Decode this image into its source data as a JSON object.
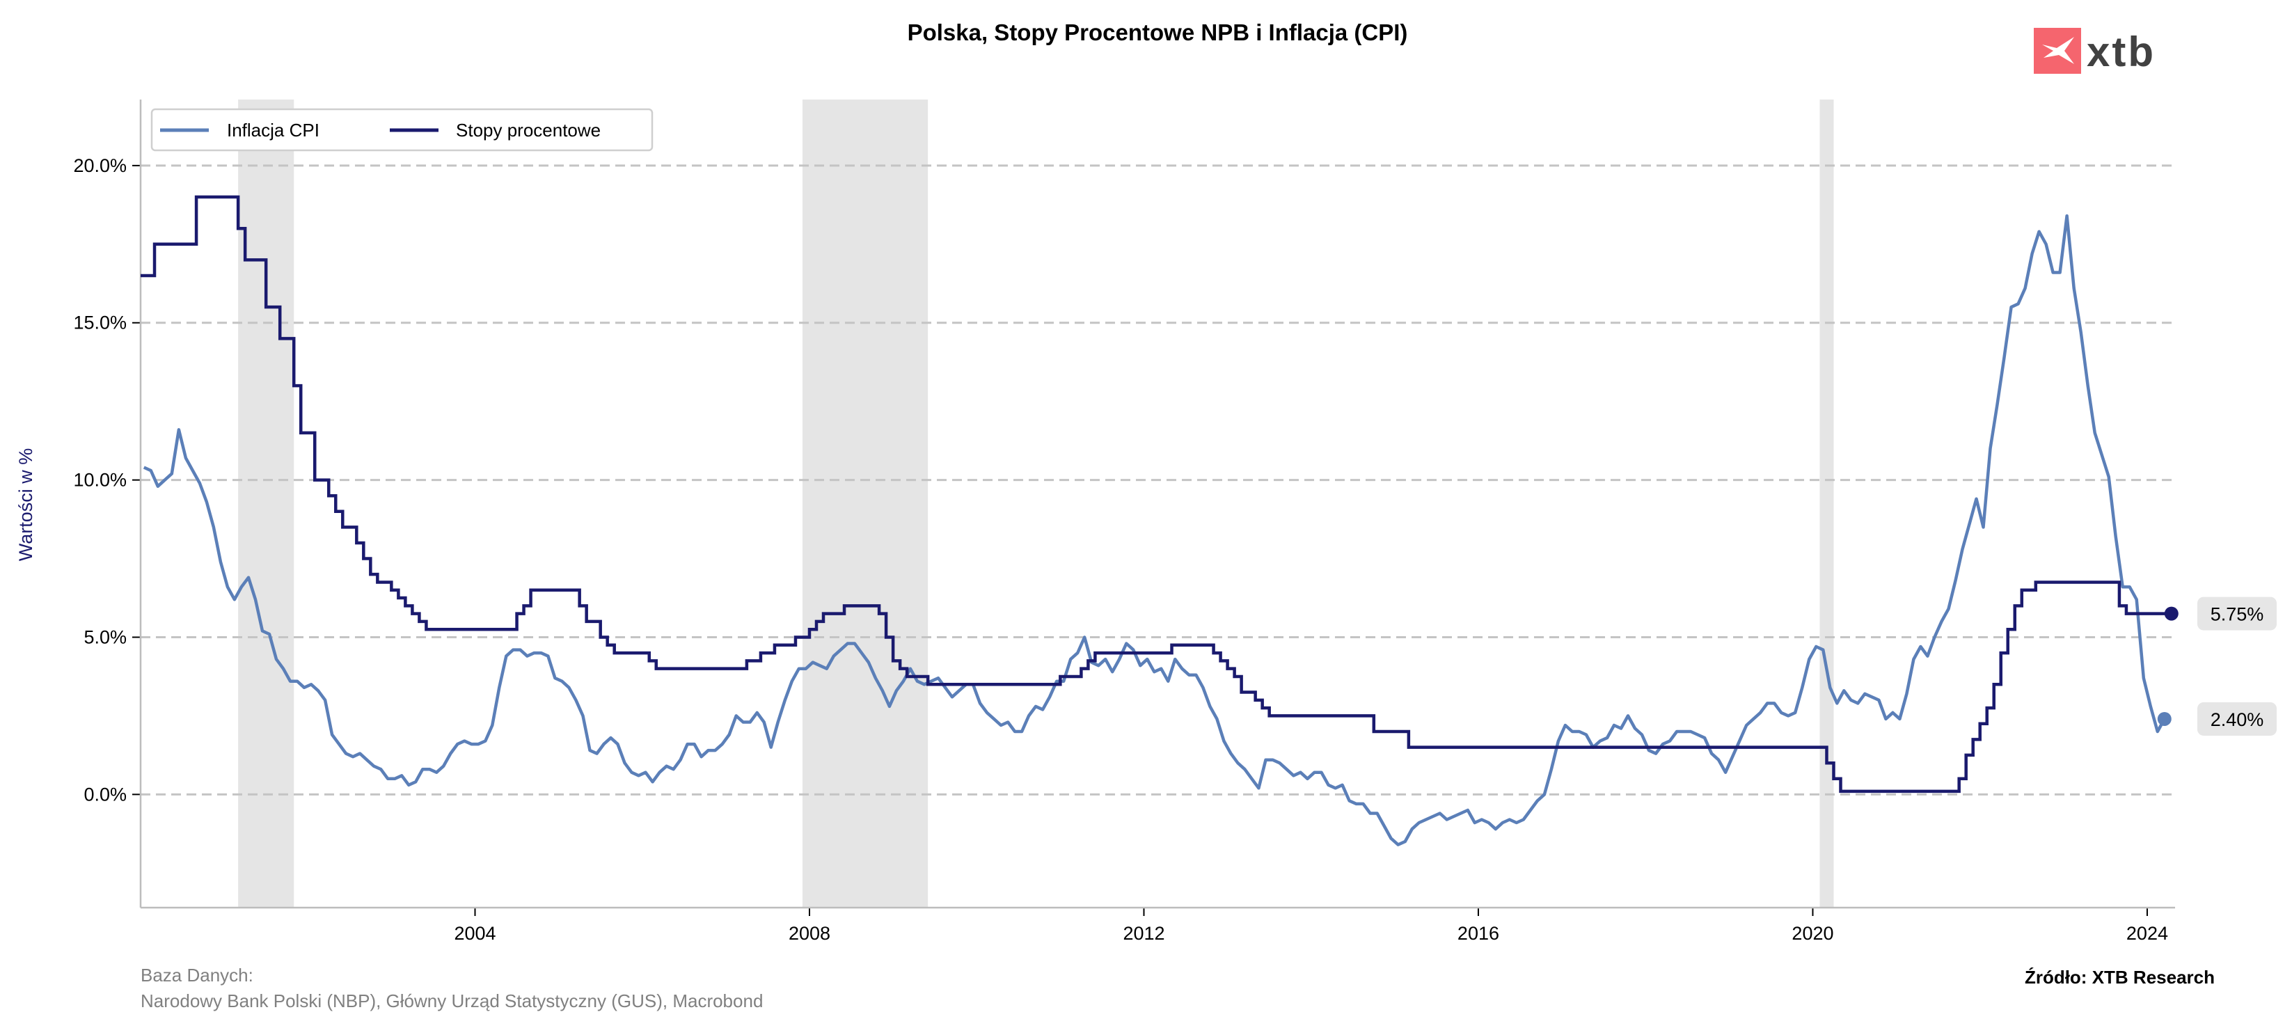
{
  "chart_data": {
    "type": "line",
    "title": "Polska, Stopy Procentowe NPB i Inflacja (CPI)",
    "ylabel": "Wartości w %",
    "xlabel": "",
    "xlim": [
      "2000-01",
      "2024-05"
    ],
    "ylim": [
      -3.6,
      22.1
    ],
    "yticks": [
      0,
      5,
      10,
      15,
      20
    ],
    "ytick_labels": [
      "0.0%",
      "5.0%",
      "10.0%",
      "15.0%",
      "20.0%"
    ],
    "xticks": [
      2004,
      2008,
      2012,
      2016,
      2020,
      2024
    ],
    "xtick_labels": [
      "2004",
      "2008",
      "2012",
      "2016",
      "2020",
      "2024"
    ],
    "grid": "horizontal dashed",
    "legend_placement": "top-left",
    "shaded_periods": [
      [
        "2001-03",
        "2001-11"
      ],
      [
        "2007-12",
        "2009-06"
      ],
      [
        "2020-02",
        "2020-04"
      ]
    ],
    "series": [
      {
        "name": "Inflacja CPI",
        "color": "#5b7fb8",
        "style": "line",
        "monthly_values_by_year": {
          "2000": [
            10.4,
            10.3,
            9.8,
            10.0,
            10.2,
            11.6,
            10.7,
            10.3,
            9.9,
            9.3,
            8.5,
            7.4
          ],
          "2001": [
            6.6,
            6.2,
            6.6,
            6.9,
            6.2,
            5.2,
            5.1,
            4.3,
            4.0,
            3.6,
            3.6,
            3.4
          ],
          "2002": [
            3.5,
            3.3,
            3.0,
            1.9,
            1.6,
            1.3,
            1.2,
            1.3,
            1.1,
            0.9,
            0.8,
            0.5
          ],
          "2003": [
            0.5,
            0.6,
            0.3,
            0.4,
            0.8,
            0.8,
            0.7,
            0.9,
            1.3,
            1.6,
            1.7,
            1.6
          ],
          "2004": [
            1.6,
            1.7,
            2.2,
            3.4,
            4.4,
            4.6,
            4.6,
            4.4,
            4.5,
            4.5,
            4.4,
            3.7
          ],
          "2005": [
            3.6,
            3.4,
            3.0,
            2.5,
            1.4,
            1.3,
            1.6,
            1.8,
            1.6,
            1.0,
            0.7,
            0.6
          ],
          "2006": [
            0.7,
            0.4,
            0.7,
            0.9,
            0.8,
            1.1,
            1.6,
            1.6,
            1.2,
            1.4,
            1.4,
            1.6
          ],
          "2007": [
            1.9,
            2.5,
            2.3,
            2.3,
            2.6,
            2.3,
            1.5,
            2.3,
            3.0,
            3.6,
            4.0,
            4.0
          ],
          "2008": [
            4.2,
            4.1,
            4.0,
            4.4,
            4.6,
            4.8,
            4.8,
            4.5,
            4.2,
            3.7,
            3.3,
            2.8
          ],
          "2009": [
            3.3,
            3.6,
            4.0,
            3.6,
            3.5,
            3.6,
            3.7,
            3.4,
            3.1,
            3.3,
            3.5,
            3.5
          ],
          "2010": [
            2.9,
            2.6,
            2.4,
            2.2,
            2.3,
            2.0,
            2.0,
            2.5,
            2.8,
            2.7,
            3.1,
            3.6
          ],
          "2011": [
            3.6,
            4.3,
            4.5,
            5.0,
            4.2,
            4.1,
            4.3,
            3.9,
            4.3,
            4.8,
            4.6,
            4.1
          ],
          "2012": [
            4.3,
            3.9,
            4.0,
            3.6,
            4.3,
            4.0,
            3.8,
            3.8,
            3.4,
            2.8,
            2.4,
            1.7
          ],
          "2013": [
            1.3,
            1.0,
            0.8,
            0.5,
            0.2,
            1.1,
            1.1,
            1.0,
            0.8,
            0.6,
            0.7,
            0.5
          ],
          "2014": [
            0.7,
            0.7,
            0.3,
            0.2,
            0.3,
            -0.2,
            -0.3,
            -0.3,
            -0.6,
            -0.6,
            -1.0,
            -1.4
          ],
          "2015": [
            -1.6,
            -1.5,
            -1.1,
            -0.9,
            -0.8,
            -0.7,
            -0.6,
            -0.8,
            -0.7,
            -0.6,
            -0.5,
            -0.9
          ],
          "2016": [
            -0.8,
            -0.9,
            -1.1,
            -0.9,
            -0.8,
            -0.9,
            -0.8,
            -0.5,
            -0.2,
            0.0,
            0.8,
            1.7
          ],
          "2017": [
            2.2,
            2.0,
            2.0,
            1.9,
            1.5,
            1.7,
            1.8,
            2.2,
            2.1,
            2.5,
            2.1,
            1.9
          ],
          "2018": [
            1.4,
            1.3,
            1.6,
            1.7,
            2.0,
            2.0,
            2.0,
            1.9,
            1.8,
            1.3,
            1.1,
            0.7
          ],
          "2019": [
            1.2,
            1.7,
            2.2,
            2.4,
            2.6,
            2.9,
            2.9,
            2.6,
            2.5,
            2.6,
            3.4,
            4.3
          ],
          "2020": [
            4.7,
            4.6,
            3.4,
            2.9,
            3.3,
            3.0,
            2.9,
            3.2,
            3.1,
            3.0,
            2.4,
            2.6
          ],
          "2021": [
            2.4,
            3.2,
            4.3,
            4.7,
            4.4,
            5.0,
            5.5,
            5.9,
            6.8,
            7.8,
            8.6,
            9.4
          ],
          "2022": [
            8.5,
            11.0,
            12.4,
            13.9,
            15.5,
            15.6,
            16.1,
            17.2,
            17.9,
            17.5,
            16.6,
            16.6
          ],
          "2023": [
            18.4,
            16.1,
            14.7,
            13.0,
            11.5,
            10.8,
            10.1,
            8.2,
            6.6,
            6.6,
            6.2,
            3.7
          ],
          "2024": [
            2.8,
            2.0,
            2.4
          ]
        },
        "last_value_label": "2.40%"
      },
      {
        "name": "Stopy procentowe",
        "color": "#1a1a6e",
        "style": "step",
        "steps": [
          [
            "2000-01",
            16.5
          ],
          [
            "2000-03",
            17.5
          ],
          [
            "2000-09",
            19.0
          ],
          [
            "2001-03",
            18.0
          ],
          [
            "2001-04",
            17.0
          ],
          [
            "2001-07",
            15.5
          ],
          [
            "2001-09",
            14.5
          ],
          [
            "2001-11",
            13.0
          ],
          [
            "2001-12",
            11.5
          ],
          [
            "2002-02",
            10.0
          ],
          [
            "2002-04",
            9.5
          ],
          [
            "2002-05",
            9.0
          ],
          [
            "2002-06",
            8.5
          ],
          [
            "2002-08",
            8.0
          ],
          [
            "2002-09",
            7.5
          ],
          [
            "2002-10",
            7.0
          ],
          [
            "2002-11",
            6.75
          ],
          [
            "2003-01",
            6.5
          ],
          [
            "2003-02",
            6.25
          ],
          [
            "2003-03",
            6.0
          ],
          [
            "2003-04",
            5.75
          ],
          [
            "2003-05",
            5.5
          ],
          [
            "2003-06",
            5.25
          ],
          [
            "2004-07",
            5.75
          ],
          [
            "2004-08",
            6.0
          ],
          [
            "2004-09",
            6.5
          ],
          [
            "2005-04",
            6.0
          ],
          [
            "2005-05",
            5.5
          ],
          [
            "2005-07",
            5.0
          ],
          [
            "2005-08",
            4.75
          ],
          [
            "2005-09",
            4.5
          ],
          [
            "2006-02",
            4.25
          ],
          [
            "2006-03",
            4.0
          ],
          [
            "2007-04",
            4.25
          ],
          [
            "2007-06",
            4.5
          ],
          [
            "2007-08",
            4.75
          ],
          [
            "2007-11",
            5.0
          ],
          [
            "2008-01",
            5.25
          ],
          [
            "2008-02",
            5.5
          ],
          [
            "2008-03",
            5.75
          ],
          [
            "2008-06",
            6.0
          ],
          [
            "2008-11",
            5.75
          ],
          [
            "2008-12",
            5.0
          ],
          [
            "2009-01",
            4.25
          ],
          [
            "2009-02",
            4.0
          ],
          [
            "2009-03",
            3.75
          ],
          [
            "2009-06",
            3.5
          ],
          [
            "2011-01",
            3.75
          ],
          [
            "2011-04",
            4.0
          ],
          [
            "2011-05",
            4.25
          ],
          [
            "2011-06",
            4.5
          ],
          [
            "2012-05",
            4.75
          ],
          [
            "2012-11",
            4.5
          ],
          [
            "2012-12",
            4.25
          ],
          [
            "2013-01",
            4.0
          ],
          [
            "2013-02",
            3.75
          ],
          [
            "2013-03",
            3.25
          ],
          [
            "2013-05",
            3.0
          ],
          [
            "2013-06",
            2.75
          ],
          [
            "2013-07",
            2.5
          ],
          [
            "2014-10",
            2.0
          ],
          [
            "2015-03",
            1.5
          ],
          [
            "2020-03",
            1.0
          ],
          [
            "2020-04",
            0.5
          ],
          [
            "2020-05",
            0.1
          ],
          [
            "2021-10",
            0.5
          ],
          [
            "2021-11",
            1.25
          ],
          [
            "2021-12",
            1.75
          ],
          [
            "2022-01",
            2.25
          ],
          [
            "2022-02",
            2.75
          ],
          [
            "2022-03",
            3.5
          ],
          [
            "2022-04",
            4.5
          ],
          [
            "2022-05",
            5.25
          ],
          [
            "2022-06",
            6.0
          ],
          [
            "2022-07",
            6.5
          ],
          [
            "2022-09",
            6.75
          ],
          [
            "2023-09",
            6.0
          ],
          [
            "2023-10",
            5.75
          ],
          [
            "2024-04",
            5.75
          ]
        ],
        "last_value_label": "5.75%"
      }
    ]
  },
  "footer": {
    "database_label": "Baza Danych:",
    "database_sources": "Narodowy Bank Polski (NBP), Główny Urząd Statystyczny (GUS), Macrobond",
    "source": "Źródło: XTB Research"
  },
  "logo": {
    "text": "xtb",
    "color": "#f5656e"
  }
}
